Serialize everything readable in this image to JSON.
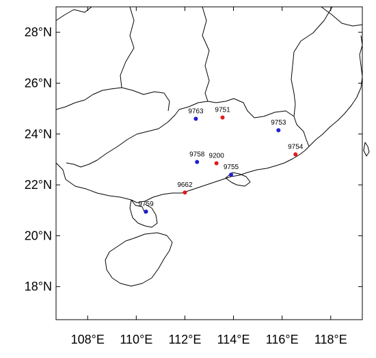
{
  "map": {
    "lon_range": [
      106.7,
      119.3
    ],
    "lat_range": [
      16.7,
      29.0
    ],
    "x_ticks": [
      {
        "value": 108,
        "label": "108°E"
      },
      {
        "value": 110,
        "label": "110°E"
      },
      {
        "value": 112,
        "label": "112°E"
      },
      {
        "value": 114,
        "label": "114°E"
      },
      {
        "value": 116,
        "label": "116°E"
      },
      {
        "value": 118,
        "label": "118°E"
      }
    ],
    "y_ticks": [
      {
        "value": 18,
        "label": "18°N"
      },
      {
        "value": 20,
        "label": "20°N"
      },
      {
        "value": 22,
        "label": "22°N"
      },
      {
        "value": 24,
        "label": "24°N"
      },
      {
        "value": 26,
        "label": "26°N"
      },
      {
        "value": 28,
        "label": "28°N"
      }
    ],
    "colors": {
      "red": "#e41a1c",
      "blue": "#1f1fd0"
    },
    "stations": [
      {
        "id": "9763",
        "lon": 112.45,
        "lat": 24.6,
        "color": "blue"
      },
      {
        "id": "9751",
        "lon": 113.55,
        "lat": 24.65,
        "color": "red"
      },
      {
        "id": "9753",
        "lon": 115.85,
        "lat": 24.15,
        "color": "blue"
      },
      {
        "id": "9754",
        "lon": 116.55,
        "lat": 23.2,
        "color": "red"
      },
      {
        "id": "9758",
        "lon": 112.5,
        "lat": 22.9,
        "color": "blue"
      },
      {
        "id": "9200",
        "lon": 113.3,
        "lat": 22.85,
        "color": "red"
      },
      {
        "id": "9755",
        "lon": 113.9,
        "lat": 22.4,
        "color": "blue"
      },
      {
        "id": "9662",
        "lon": 112.0,
        "lat": 21.7,
        "color": "red"
      },
      {
        "id": "9759",
        "lon": 110.4,
        "lat": 20.95,
        "color": "blue"
      }
    ]
  }
}
